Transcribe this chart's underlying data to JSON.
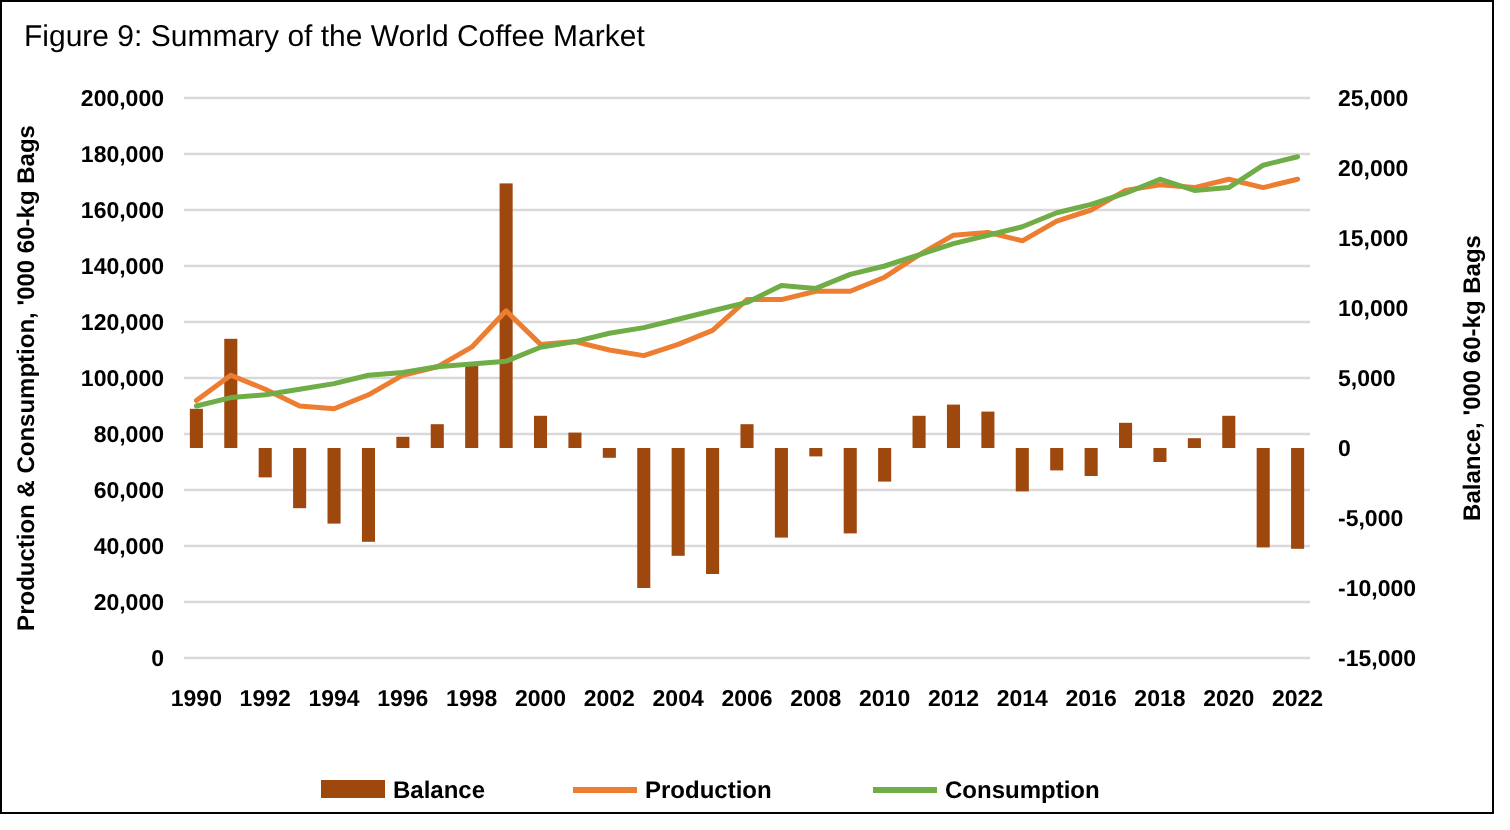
{
  "chart_data": {
    "type": "line",
    "title": "Figure 9: Summary of the World Coffee Market",
    "ylabel": "Production & Consumption, '000 60-kg Bags",
    "y2label": "Balance, '000 60-kg Bags",
    "categories": [
      "1990",
      null,
      "1992",
      null,
      "1994",
      null,
      "1996",
      null,
      "1998",
      null,
      "2000",
      null,
      "2002",
      null,
      "2004",
      null,
      "2006",
      null,
      "2008",
      null,
      "2010",
      null,
      "2012",
      null,
      "2014",
      null,
      "2016",
      null,
      "2018",
      null,
      "2020",
      null,
      "2022"
    ],
    "series": [
      {
        "name": "Balance",
        "type": "bar",
        "axis": "y2",
        "color": "#9e480e",
        "values": [
          2800,
          7800,
          -2100,
          -4300,
          -5400,
          -6700,
          800,
          1700,
          6000,
          18900,
          2300,
          1100,
          -700,
          -10000,
          -7700,
          -9000,
          1700,
          -6400,
          -600,
          -6100,
          -2400,
          2300,
          3100,
          2600,
          -3100,
          -1600,
          -2000,
          1800,
          -1000,
          700,
          2300,
          -7100,
          -7200
        ]
      },
      {
        "name": "Production",
        "color": "#ed7d31",
        "values": [
          92000,
          101000,
          96000,
          90000,
          89000,
          94000,
          101000,
          104000,
          111000,
          124000,
          112000,
          113000,
          110000,
          108000,
          112000,
          117000,
          128000,
          128000,
          131000,
          131000,
          136000,
          144000,
          151000,
          152000,
          149000,
          156000,
          160000,
          167000,
          169000,
          168000,
          171000,
          168000,
          171000
        ]
      },
      {
        "name": "Consumption",
        "color": "#70ad47",
        "values": [
          90000,
          93000,
          94000,
          96000,
          98000,
          101000,
          102000,
          104000,
          105000,
          106000,
          111000,
          113000,
          116000,
          118000,
          121000,
          124000,
          127000,
          133000,
          132000,
          137000,
          140000,
          144000,
          148000,
          151000,
          154000,
          159000,
          162000,
          166000,
          171000,
          167000,
          168000,
          176000,
          179000
        ]
      }
    ],
    "ylim": [
      0,
      200000
    ],
    "yticks": [
      {
        "value": 0,
        "label": "0"
      },
      {
        "value": 20000,
        "label": "20,000"
      },
      {
        "value": 40000,
        "label": "40,000"
      },
      {
        "value": 60000,
        "label": "60,000"
      },
      {
        "value": 80000,
        "label": "80,000"
      },
      {
        "value": 100000,
        "label": "100,000"
      },
      {
        "value": 120000,
        "label": "120,000"
      },
      {
        "value": 140000,
        "label": "140,000"
      },
      {
        "value": 160000,
        "label": "160,000"
      },
      {
        "value": 180000,
        "label": "180,000"
      },
      {
        "value": 200000,
        "label": "200,000"
      }
    ],
    "y2lim": [
      -15000,
      25000
    ],
    "y2ticks": [
      {
        "value": -15000,
        "label": "-15,000"
      },
      {
        "value": -10000,
        "label": "-10,000"
      },
      {
        "value": -5000,
        "label": "-5,000"
      },
      {
        "value": 0,
        "label": "0"
      },
      {
        "value": 5000,
        "label": "5,000"
      },
      {
        "value": 10000,
        "label": "10,000"
      },
      {
        "value": 15000,
        "label": "15,000"
      },
      {
        "value": 20000,
        "label": "20,000"
      },
      {
        "value": 25000,
        "label": "25,000"
      }
    ],
    "grid": "y",
    "legend": "bottom"
  }
}
